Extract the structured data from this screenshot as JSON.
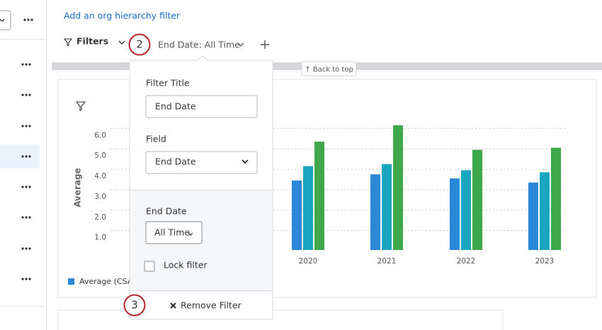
{
  "toolbar": {
    "add_filter_link": "Add an org hierarchy filter",
    "filters_label": "Filters",
    "active_filter": "End Date: All Time",
    "back_to_top": "↑ Back to top"
  },
  "steps": [
    "2",
    "3"
  ],
  "filter_popup": {
    "title_label": "Filter Title",
    "title_value": "End Date",
    "field_label": "Field",
    "field_value": "End Date",
    "date_label": "End Date",
    "date_value": "All Time",
    "lock_label": "Lock filter",
    "remove_button": "Remove Filter"
  },
  "chart": {
    "type": "bar",
    "y_axis_label": "Average",
    "categories": [
      "2020",
      "2021",
      "2022",
      "2023"
    ],
    "series": [
      {
        "name": "Average (CSAT",
        "color": "#2b87d8",
        "values": [
          3.8,
          4.1,
          3.9,
          3.7
        ]
      },
      {
        "color": "#1aa6bf",
        "values": [
          4.5,
          4.6,
          4.3,
          4.2
        ]
      },
      {
        "color": "#3ea84a",
        "values": [
          5.7,
          6.5,
          5.3,
          5.4
        ]
      }
    ],
    "ylim": [
      0.4,
      6.6
    ],
    "yticks": [
      {
        "value": 1,
        "label": "1.0"
      },
      {
        "value": 2,
        "label": "2.0"
      },
      {
        "value": 3,
        "label": "3.0"
      },
      {
        "value": 4,
        "label": "4.0"
      },
      {
        "value": 5,
        "label": "5.0"
      },
      {
        "value": 6,
        "label": "6.0"
      }
    ],
    "grid": true
  }
}
